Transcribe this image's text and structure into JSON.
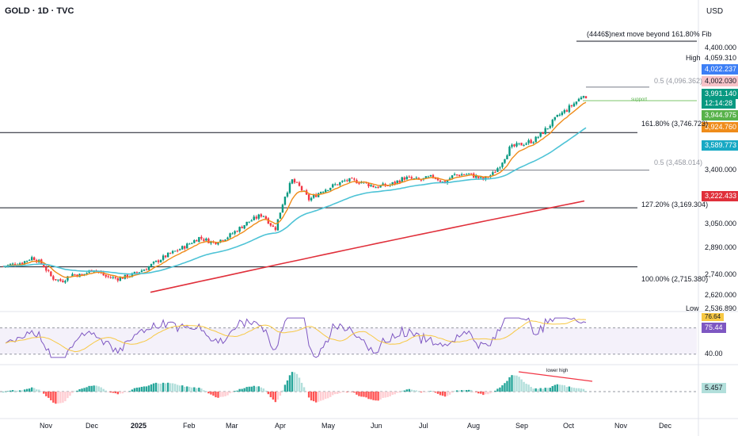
{
  "header": {
    "title": "GOLD · 1D · TVC",
    "currency": "USD"
  },
  "annotation_top": "(4446$)next move beyond 161.80% Fib",
  "colors": {
    "up": "#089981",
    "down": "#f23645",
    "ema_fast": "#ef8c1a",
    "ema_mid": "#4ec3d6",
    "ema_slow": "#e0303b",
    "rsi": "#7e57c2",
    "rsi_ma": "#f7c843",
    "support": "#7cc66b",
    "fib_text": "#131722",
    "fib_text_dim": "#9598a1"
  },
  "price_axis": {
    "labels": [
      "4,400.000",
      "3,400.000",
      "3,050.000",
      "2,890.000",
      "2,740.000",
      "2,620.000"
    ],
    "high_label": "High",
    "high_value": "4,059.310",
    "low_label": "Low",
    "low_value": "2,536.890"
  },
  "tags": {
    "blue": "4,022.237",
    "last_close": "4,002.030",
    "price": "3,991.140",
    "countdown": "12:14:28",
    "green": "3,944.975",
    "orange": "3,924.760",
    "cyan": "3,589.773",
    "red": "3,222.433"
  },
  "levels": [
    {
      "label": "0.5 (4,096.362)",
      "price": 4096.362,
      "dim": true
    },
    {
      "label": "161.80% (3,746.723)",
      "price": 3746.723,
      "dim": false
    },
    {
      "label": "0.5 (3,458.014)",
      "price": 3458.014,
      "dim": true
    },
    {
      "label": "127.20% (3,169.304)",
      "price": 3169.304,
      "dim": false
    },
    {
      "label": "100.00% (2,715.380)",
      "price": 2715.38,
      "dim": false
    }
  ],
  "support_label": "support",
  "rsi_panel": {
    "value1": "76.64",
    "value2": "75.44",
    "level_label": "40.00"
  },
  "macd_panel": {
    "value": "5.457",
    "annotation": "lower high"
  },
  "months": [
    "Nov",
    "Dec",
    "2025",
    "Feb",
    "Mar",
    "Apr",
    "May",
    "Jun",
    "Jul",
    "Aug",
    "Sep",
    "Oct",
    "Nov",
    "Dec"
  ],
  "chart_data": {
    "type": "candlestick",
    "title": "GOLD · 1D · TVC",
    "currency": "USD",
    "x_months": [
      "Nov",
      "Dec",
      "2025",
      "Feb",
      "Mar",
      "Apr",
      "May",
      "Jun",
      "Jul",
      "Aug",
      "Sep",
      "Oct",
      "Nov",
      "Dec"
    ],
    "close_series": [
      {
        "m": 0,
        "v": 2720
      },
      {
        "m": 0.4,
        "v": 2750
      },
      {
        "m": 0.6,
        "v": 2790
      },
      {
        "m": 0.8,
        "v": 2735
      },
      {
        "m": 1.0,
        "v": 2630
      },
      {
        "m": 1.2,
        "v": 2605
      },
      {
        "m": 1.4,
        "v": 2660
      },
      {
        "m": 1.6,
        "v": 2650
      },
      {
        "m": 1.85,
        "v": 2700
      },
      {
        "m": 2.1,
        "v": 2640
      },
      {
        "m": 2.35,
        "v": 2625
      },
      {
        "m": 2.6,
        "v": 2650
      },
      {
        "m": 2.9,
        "v": 2700
      },
      {
        "m": 3.3,
        "v": 2795
      },
      {
        "m": 3.7,
        "v": 2870
      },
      {
        "m": 4.0,
        "v": 2940
      },
      {
        "m": 4.3,
        "v": 2900
      },
      {
        "m": 4.6,
        "v": 2950
      },
      {
        "m": 5.0,
        "v": 3060
      },
      {
        "m": 5.3,
        "v": 3120
      },
      {
        "m": 5.55,
        "v": 3000
      },
      {
        "m": 5.75,
        "v": 3260
      },
      {
        "m": 5.9,
        "v": 3380
      },
      {
        "m": 6.05,
        "v": 3330
      },
      {
        "m": 6.25,
        "v": 3230
      },
      {
        "m": 6.5,
        "v": 3300
      },
      {
        "m": 6.75,
        "v": 3340
      },
      {
        "m": 7.0,
        "v": 3380
      },
      {
        "m": 7.3,
        "v": 3370
      },
      {
        "m": 7.6,
        "v": 3330
      },
      {
        "m": 7.9,
        "v": 3345
      },
      {
        "m": 8.2,
        "v": 3400
      },
      {
        "m": 8.5,
        "v": 3380
      },
      {
        "m": 8.8,
        "v": 3410
      },
      {
        "m": 9.0,
        "v": 3360
      },
      {
        "m": 9.2,
        "v": 3420
      },
      {
        "m": 9.5,
        "v": 3430
      },
      {
        "m": 9.8,
        "v": 3385
      },
      {
        "m": 10.0,
        "v": 3430
      },
      {
        "m": 10.15,
        "v": 3500
      },
      {
        "m": 10.35,
        "v": 3630
      },
      {
        "m": 10.6,
        "v": 3660
      },
      {
        "m": 10.85,
        "v": 3690
      },
      {
        "m": 11.05,
        "v": 3760
      },
      {
        "m": 11.2,
        "v": 3820
      },
      {
        "m": 11.35,
        "v": 3880
      },
      {
        "m": 11.5,
        "v": 3920
      },
      {
        "m": 11.75,
        "v": 4000
      },
      {
        "m": 11.85,
        "v": 4050
      },
      {
        "m": 11.9,
        "v": 3991
      }
    ],
    "price_range": [
      2480,
      4480
    ],
    "overlays": [
      "EMA fast (orange)",
      "EMA mid (cyan)",
      "EMA slow (red)"
    ],
    "panels": [
      "RSI",
      "MACD histogram"
    ],
    "rsi_ylim": [
      20,
      90
    ]
  }
}
